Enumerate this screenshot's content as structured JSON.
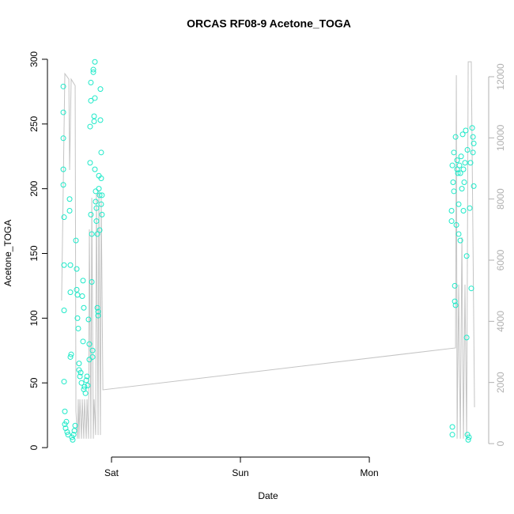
{
  "chart_data": {
    "type": "scatter",
    "title": "ORCAS RF08-9 Acetone_TOGA",
    "xlabel": "Date",
    "ylabel": "Acetone_TOGA",
    "xlim": [
      -0.497,
      2.926
    ],
    "xticks": [
      {
        "value": 0,
        "label": "Sat"
      },
      {
        "value": 1,
        "label": "Sun"
      },
      {
        "value": 2,
        "label": "Mon"
      }
    ],
    "ylim": [
      -7.3,
      307.3
    ],
    "yticks": [
      0,
      50,
      100,
      150,
      200,
      250,
      300
    ],
    "y2lim": [
      -440,
      12880
    ],
    "y2ticks": [
      0,
      2000,
      4000,
      6000,
      8000,
      10000,
      12000
    ],
    "series": [
      {
        "type": "scatter",
        "color": "#1de9c8",
        "x": [
          -0.374,
          -0.374,
          -0.374,
          -0.374,
          -0.374,
          -0.368,
          -0.368,
          -0.368,
          -0.368,
          -0.362,
          -0.362,
          -0.356,
          -0.35,
          -0.344,
          -0.337,
          -0.325,
          -0.325,
          -0.319,
          -0.319,
          -0.319,
          -0.313,
          -0.307,
          -0.301,
          -0.294,
          -0.288,
          -0.282,
          -0.276,
          -0.27,
          -0.27,
          -0.264,
          -0.264,
          -0.258,
          -0.252,
          -0.252,
          -0.245,
          -0.239,
          -0.233,
          -0.227,
          -0.221,
          -0.221,
          -0.215,
          -0.215,
          -0.209,
          -0.202,
          -0.196,
          -0.19,
          -0.184,
          -0.178,
          -0.172,
          -0.172,
          -0.166,
          -0.166,
          -0.16,
          -0.16,
          -0.16,
          -0.153,
          -0.153,
          -0.147,
          -0.147,
          -0.141,
          -0.141,
          -0.135,
          -0.135,
          -0.129,
          -0.129,
          -0.129,
          -0.123,
          -0.123,
          -0.117,
          -0.117,
          -0.11,
          -0.11,
          -0.104,
          -0.104,
          -0.098,
          -0.098,
          -0.092,
          -0.092,
          -0.086,
          -0.086,
          -0.08,
          -0.08,
          -0.08,
          -0.074,
          -0.074,
          2.638,
          2.638,
          2.644,
          2.644,
          2.644,
          2.65,
          2.656,
          2.656,
          2.663,
          2.663,
          2.669,
          2.669,
          2.675,
          2.681,
          2.681,
          2.687,
          2.693,
          2.693,
          2.699,
          2.706,
          2.706,
          2.712,
          2.718,
          2.724,
          2.73,
          2.73,
          2.736,
          2.742,
          2.748,
          2.755,
          2.755,
          2.761,
          2.761,
          2.767,
          2.773,
          2.779,
          2.785,
          2.791,
          2.798,
          2.804,
          2.804,
          2.81,
          2.81
        ],
        "values": [
          279,
          259,
          239,
          215,
          203,
          178,
          141,
          106,
          51,
          28,
          18,
          15,
          20,
          12,
          10,
          192,
          183,
          141,
          120,
          70,
          72,
          8,
          6,
          10,
          13,
          17,
          160,
          138,
          122,
          118,
          100,
          92,
          65,
          60,
          55,
          58,
          50,
          117,
          129,
          82,
          108,
          45,
          47,
          42,
          52,
          55,
          48,
          99,
          80,
          68,
          220,
          248,
          282,
          268,
          180,
          165,
          128,
          75,
          70,
          292,
          290,
          256,
          252,
          298,
          270,
          215,
          198,
          190,
          185,
          175,
          165,
          108,
          105,
          102,
          210,
          200,
          195,
          168,
          277,
          253,
          228,
          208,
          188,
          195,
          180,
          183,
          175,
          16,
          10,
          218,
          205,
          228,
          198,
          125,
          113,
          110,
          240,
          172,
          215,
          222,
          212,
          188,
          165,
          218,
          212,
          160,
          225,
          200,
          242,
          215,
          183,
          205,
          220,
          245,
          85,
          148,
          230,
          10,
          6,
          8,
          185,
          220,
          123,
          247,
          240,
          228,
          202,
          235
        ]
      },
      {
        "type": "line",
        "axis": "y2",
        "color": "#c4c4c4",
        "x": [
          -0.387,
          -0.362,
          -0.331,
          -0.325,
          -0.313,
          -0.282,
          -0.276,
          -0.264,
          -0.258,
          -0.252,
          -0.245,
          -0.233,
          -0.227,
          -0.215,
          -0.209,
          -0.196,
          -0.19,
          -0.178,
          -0.172,
          -0.16,
          -0.153,
          -0.141,
          -0.135,
          -0.123,
          -0.117,
          -0.104,
          -0.098,
          -0.086,
          -0.08,
          -0.067,
          2.669,
          2.675,
          2.681,
          2.693,
          2.706,
          2.718,
          2.73,
          2.742,
          2.755,
          2.767,
          2.791,
          2.816
        ],
        "values": [
          4680,
          12100,
          11920,
          8950,
          11920,
          11710,
          1060,
          160,
          1450,
          160,
          1450,
          160,
          1450,
          160,
          1450,
          160,
          1450,
          160,
          7010,
          160,
          8040,
          160,
          1450,
          280,
          8170,
          280,
          8300,
          280,
          8040,
          1760,
          3130,
          12050,
          160,
          5200,
          160,
          6750,
          160,
          5200,
          160,
          12490,
          12490,
          1190
        ]
      }
    ]
  }
}
